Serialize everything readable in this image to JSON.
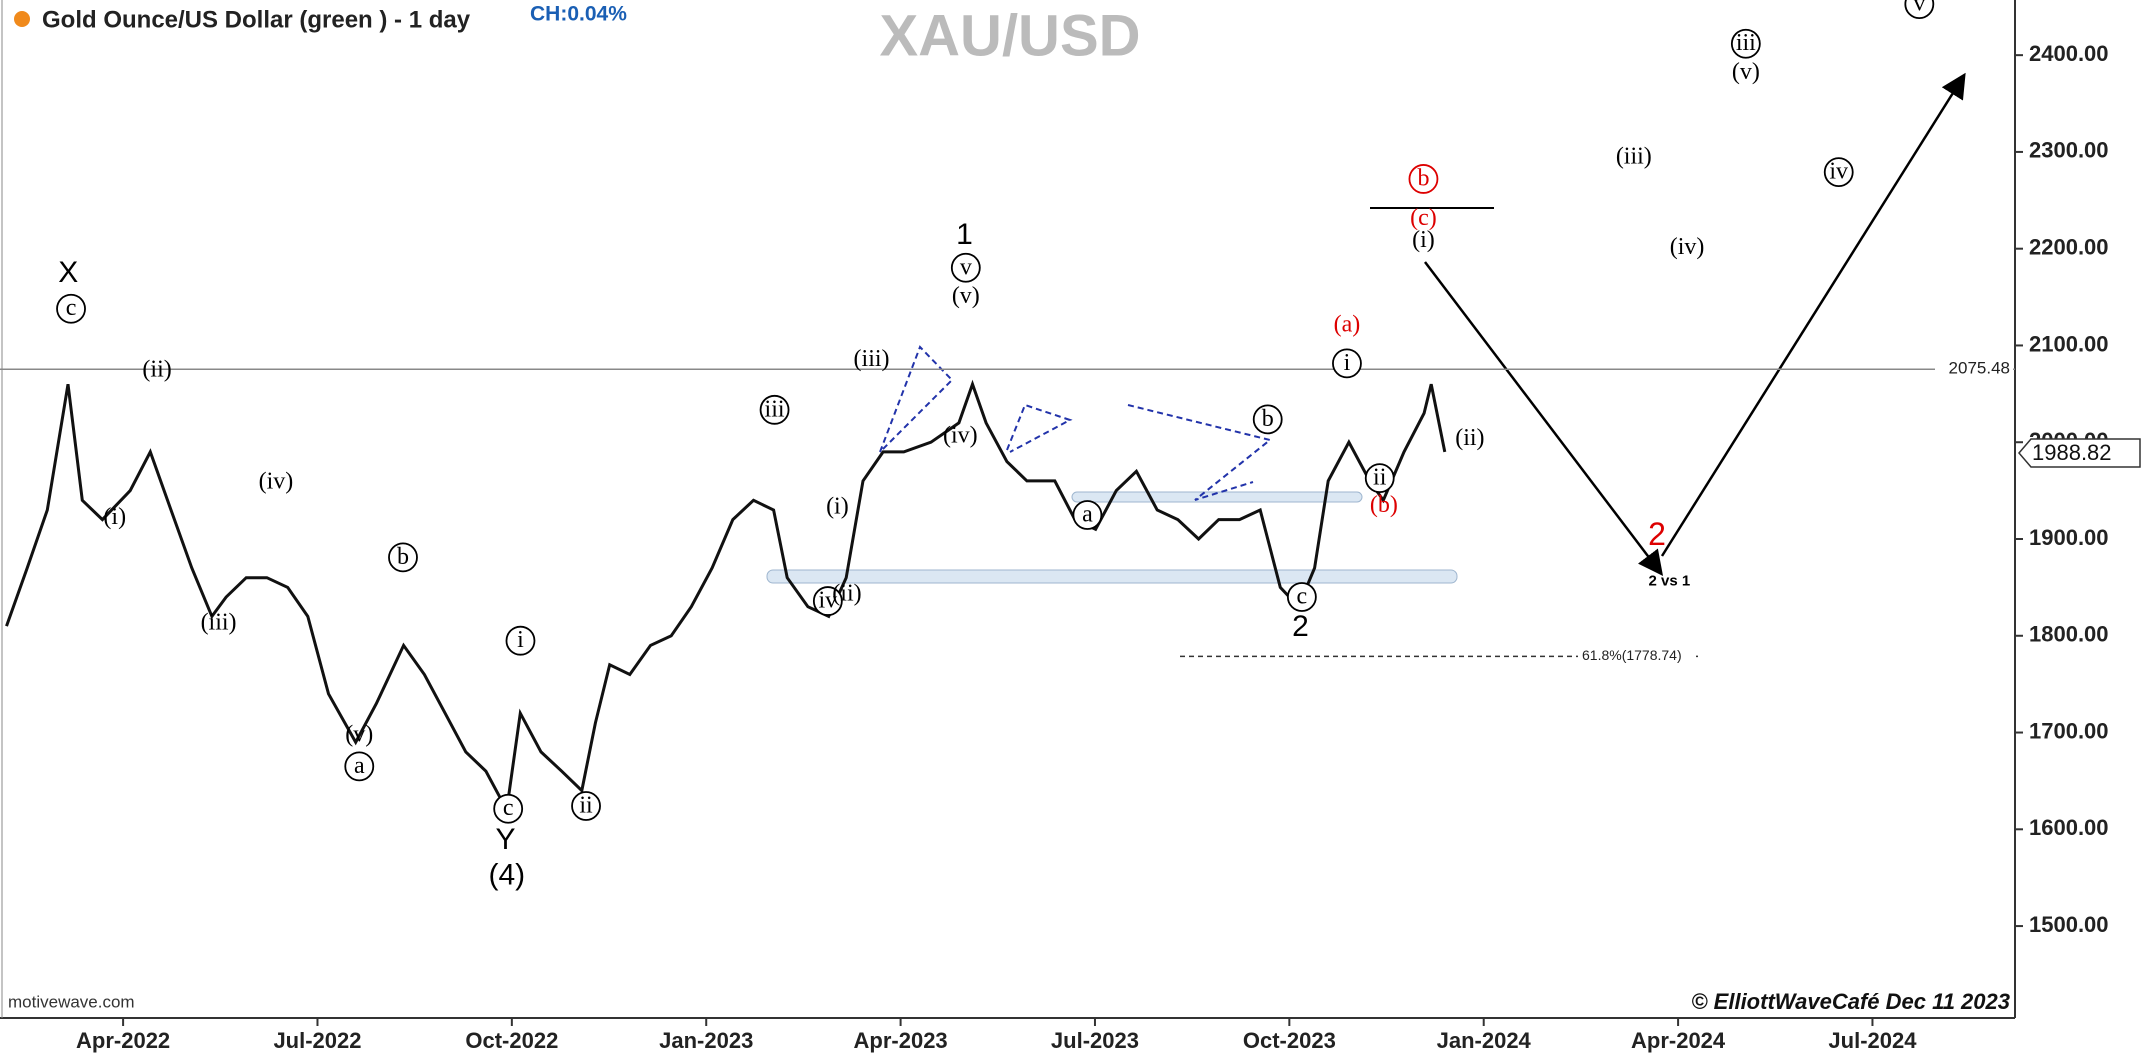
{
  "chart_data": {
    "type": "line",
    "title": "Gold Ounce/US Dollar (green ) - 1 day",
    "change": "CH:0.04%",
    "watermark": "XAU/USD",
    "source": "motivewave.com",
    "credit": "© ElliottWaveCafé Dec 11 2023",
    "color": "#111111",
    "x": [
      1.2,
      1.52,
      1.83,
      2.15,
      2.37,
      2.68,
      3.11,
      3.42,
      3.74,
      4.06,
      4.37,
      4.59,
      4.9,
      5.22,
      5.54,
      5.85,
      6.17,
      6.59,
      6.91,
      7.33,
      7.65,
      7.97,
      8.29,
      8.6,
      8.92,
      9.13,
      9.45,
      9.77,
      10.08,
      10.29,
      10.51,
      10.82,
      11.14,
      11.46,
      11.77,
      12.09,
      12.41,
      12.73,
      13.04,
      13.25,
      13.57,
      13.89,
      14.16,
      14.42,
      14.73,
      15.05,
      15.47,
      15.9,
      16.11,
      16.32,
      16.64,
      16.95,
      17.38,
      17.69,
      18.01,
      18.33,
      18.64,
      18.96,
      19.28,
      19.6,
      19.91,
      20.23,
      20.55,
      20.86,
      21.14,
      21.39,
      21.6,
      21.92,
      22.24,
      22.45,
      22.77,
      23.08,
      23.19,
      23.4
    ],
    "values": [
      1810,
      1870,
      1930,
      2060,
      1940,
      1920,
      1950,
      1990,
      1930,
      1870,
      1820,
      1840,
      1860,
      1860,
      1850,
      1820,
      1740,
      1690,
      1730,
      1790,
      1760,
      1720,
      1680,
      1660,
      1620,
      1720,
      1680,
      1660,
      1640,
      1710,
      1770,
      1760,
      1790,
      1800,
      1830,
      1870,
      1920,
      1940,
      1930,
      1860,
      1830,
      1820,
      1860,
      1960,
      1990,
      1990,
      2000,
      2020,
      2060,
      2020,
      1980,
      1960,
      1960,
      1920,
      1910,
      1950,
      1970,
      1930,
      1920,
      1900,
      1920,
      1920,
      1930,
      1850,
      1830,
      1870,
      1960,
      2000,
      1960,
      1940,
      1990,
      2030,
      2060,
      1990
    ],
    "xlim": [
      1.1,
      32.2
    ],
    "xticks": [
      {
        "value": 3,
        "label": "Apr-2022"
      },
      {
        "value": 6,
        "label": "Jul-2022"
      },
      {
        "value": 9,
        "label": "Oct-2022"
      },
      {
        "value": 12,
        "label": "Jan-2023"
      },
      {
        "value": 15,
        "label": "Apr-2023"
      },
      {
        "value": 18,
        "label": "Jul-2023"
      },
      {
        "value": 21,
        "label": "Oct-2023"
      },
      {
        "value": 24,
        "label": "Jan-2024"
      },
      {
        "value": 27,
        "label": "Apr-2024"
      },
      {
        "value": 30,
        "label": "Jul-2024"
      }
    ],
    "ylim": [
      1405,
      2457
    ],
    "yticks": [
      {
        "value": 1500,
        "label": "1500.00"
      },
      {
        "value": 1600,
        "label": "1600.00"
      },
      {
        "value": 1700,
        "label": "1700.00"
      },
      {
        "value": 1800,
        "label": "1800.00"
      },
      {
        "value": 1900,
        "label": "1900.00"
      },
      {
        "value": 2000,
        "label": "2000.00"
      },
      {
        "value": 2100,
        "label": "2100.00"
      },
      {
        "value": 2200,
        "label": "2200.00"
      },
      {
        "value": 2300,
        "label": "2300.00"
      },
      {
        "value": 2400,
        "label": "2400.00"
      }
    ],
    "hline": 2075.48,
    "last_price": 1988.82,
    "fib": {
      "value": 1778.74,
      "label": "61.8%(1778.74)"
    },
    "annotations": [
      "X",
      "c",
      "(ii)",
      "(i)",
      "(iv)",
      "(iii)",
      "b",
      "(v)",
      "a",
      "i",
      "c",
      "Y",
      "(4)",
      "ii",
      "iii",
      "(iii)",
      "(i)",
      "iv",
      "(ii)",
      "1",
      "v",
      "(v)",
      "(iv)",
      "a",
      "b",
      "c",
      "2",
      "i",
      "ii",
      "(b)",
      "(a)",
      "b",
      "(c)",
      "(i)",
      "(ii)",
      "2",
      "2 vs 1",
      "(iii)",
      "(iv)",
      "iii",
      "(v)",
      "iv",
      "v"
    ]
  }
}
